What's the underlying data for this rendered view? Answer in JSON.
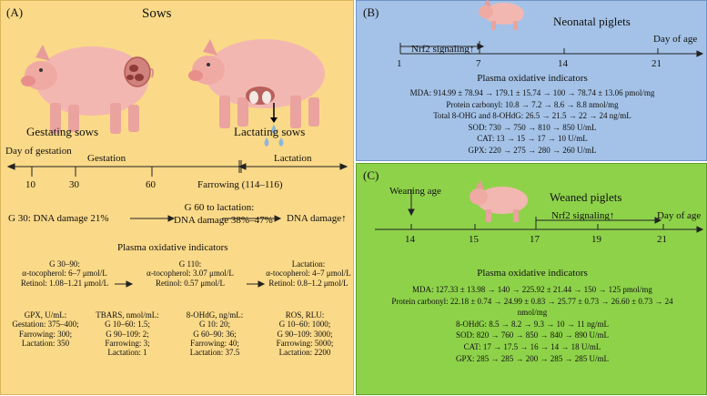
{
  "panelA": {
    "label": "(A)",
    "title": "Sows",
    "gestating": "Gestating sows",
    "lactating": "Lactating sows",
    "day_of_gestation": "Day of gestation",
    "gestation": "Gestation",
    "lactation": "Lactation",
    "ticks": [
      "10",
      "30",
      "60"
    ],
    "farrowing": "Farrowing (114–116)",
    "g30": "G 30: DNA damage 21%",
    "g60_line1": "G 60 to lactation:",
    "g60_line2": "DNA damage 38%–47%",
    "dna_up": "DNA damage↑",
    "plasma": "Plasma oxidative indicators",
    "col1": [
      "G 30–90:",
      "α-tocopherol: 6–7 μmol/L",
      "Retinol: 1.08–1.21 μmol/L"
    ],
    "col2": [
      "G 110:",
      "α-tocopherol: 3.07 μmol/L",
      "Retinol: 0.57 μmol/L"
    ],
    "col3": [
      "Lactation:",
      "α-tocopherol: 4–7 μmol/L",
      "Retinol: 0.8–1.2 μmol/L"
    ],
    "gpx": [
      "GPX, U/mL:",
      "Gestation: 375–400;",
      "Farrowing: 300;",
      "Lactation: 350"
    ],
    "tbars": [
      "TBARS, nmol/mL:",
      "G 10–60: 1.5;",
      "G 90–109: 2;",
      "Farrowing: 3;",
      "Lactation: 1"
    ],
    "ohdg": [
      "8-OHdG, ng/mL:",
      "G 10: 20;",
      "G 60–90: 36;",
      "Farrowing: 40;",
      "Lactation: 37.5"
    ],
    "ros": [
      "ROS, RLU:",
      "G 10–60: 1000;",
      "G 90–109: 3000;",
      "Farrowing: 5000;",
      "Lactation: 2200"
    ]
  },
  "panelB": {
    "label": "(B)",
    "title": "Neonatal piglets",
    "day_of_age": "Day of age",
    "nrf2": "Nrf2 signaling↑",
    "ticks": [
      "1",
      "7",
      "14",
      "21"
    ],
    "plasma": "Plasma oxidative indicators",
    "lines": [
      "MDA: 914.99 ± 78.94 → 179.1 ± 15.74 → 100 → 78.74 ± 13.06 pmol/mg",
      "Protein carbonyl: 10.8 → 7.2 → 8.6 → 8.8 nmol/mg",
      "Total 8-OHG and 8-OHdG: 26.5 → 21.5 → 22 → 24 ng/mL",
      "SOD: 730 → 750 → 810 → 850 U/mL",
      "CAT: 13 → 15 → 17 → 10 U/mL",
      "GPX: 220 → 275 → 280 → 260 U/mL"
    ]
  },
  "panelC": {
    "label": "(C)",
    "title": "Weaned piglets",
    "weaning": "Weaning age",
    "nrf2": "Nrf2 signaling↑",
    "day_of_age": "Day of age",
    "ticks": [
      "14",
      "15",
      "17",
      "19",
      "21"
    ],
    "plasma": "Plasma oxidative indicators",
    "lines": [
      "MDA: 127.33 ± 13.98 → 140 → 225.92 ± 21.44 → 150 → 125 pmol/mg",
      "Protein carbonyl: 22.18 ± 0.74 → 24.99 ± 0.83 → 25.77 ± 0.73 → 26.60 ± 0.73 → 24",
      "nmol/mg",
      "8-OHdG: 8.5 → 8.2 → 9.3 → 10 → 11 ng/mL",
      "SOD: 820 → 760 → 850 → 840 → 890 U/mL",
      "CAT: 17 → 17.5 → 16 → 14 → 18 U/mL",
      "GPX: 285 → 285 → 200 → 285 → 285 U/mL"
    ]
  }
}
